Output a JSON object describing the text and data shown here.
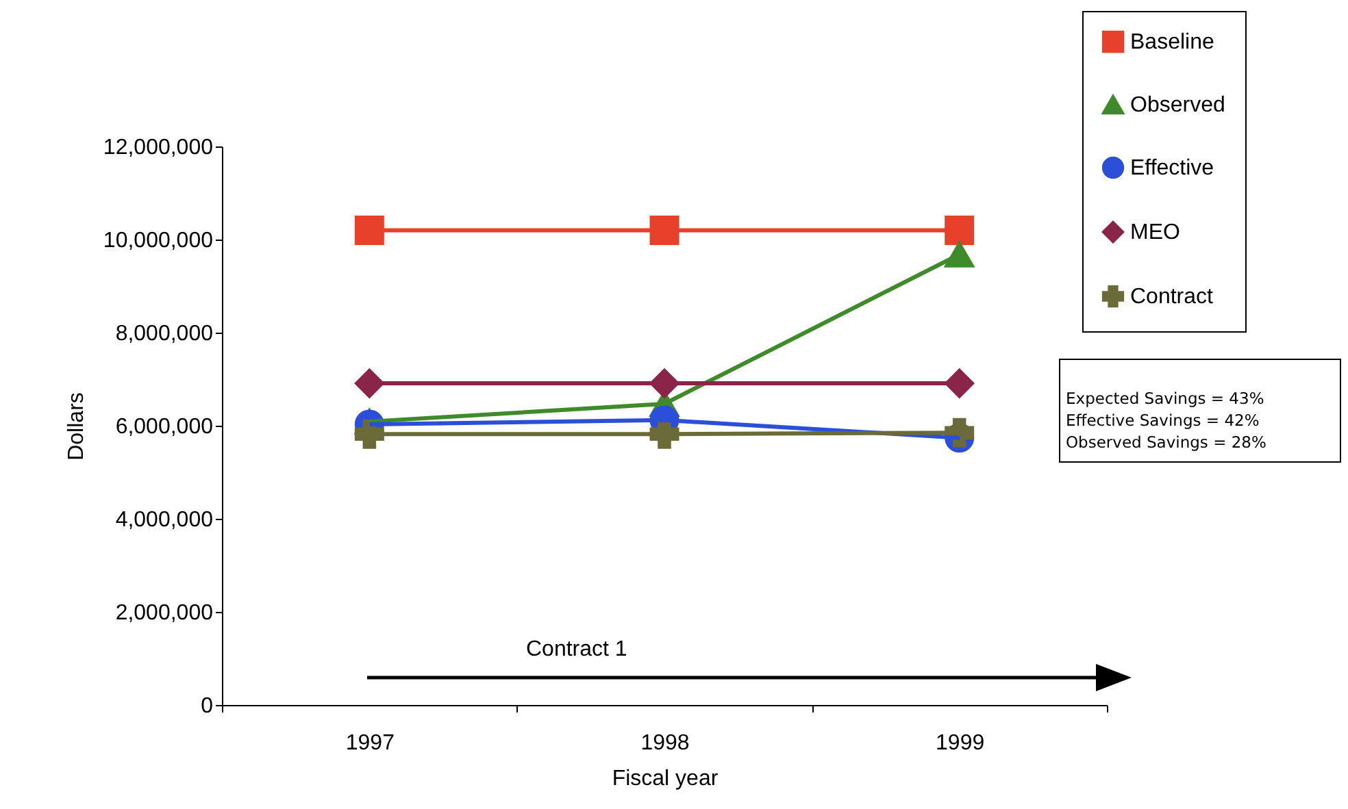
{
  "chart_data": {
    "type": "line",
    "xlabel": "Fiscal year",
    "ylabel": "Dollars",
    "categories": [
      "1997",
      "1998",
      "1999"
    ],
    "ylim": [
      0,
      12000000
    ],
    "yticks": [
      0,
      {
        "value": 2000000,
        "label": "2,000,000"
      },
      {
        "value": 4000000,
        "label": "4,000,000"
      },
      {
        "value": 6000000,
        "label": "6,000,000"
      },
      {
        "value": 8000000,
        "label": "8,000,000"
      },
      {
        "value": 10000000,
        "label": "10,000,000"
      },
      {
        "value": 12000000,
        "label": "12,000,000"
      }
    ],
    "grid": false,
    "legend": "top right",
    "annotations": [
      "Contract 1",
      "Expected Savings = 43%",
      "Effective Savings = 42%",
      "Observed Savings = 28%"
    ],
    "series": [
      {
        "name": "Baseline",
        "color": "#e8412b",
        "marker": "square",
        "values": [
          10200000,
          10200000,
          10200000
        ]
      },
      {
        "name": "Observed",
        "color": "#3f8a2a",
        "marker": "triangle",
        "values": [
          6090000,
          6470000,
          9680000
        ]
      },
      {
        "name": "Effective",
        "color": "#2b4fd8",
        "marker": "circle",
        "values": [
          6030000,
          6120000,
          5740000
        ]
      },
      {
        "name": "MEO",
        "color": "#8b2449",
        "marker": "diamond",
        "values": [
          6910000,
          6910000,
          6910000
        ]
      },
      {
        "name": "Contract",
        "color": "#6b6b3a",
        "marker": "cross",
        "values": [
          5820000,
          5820000,
          5850000
        ]
      }
    ]
  }
}
